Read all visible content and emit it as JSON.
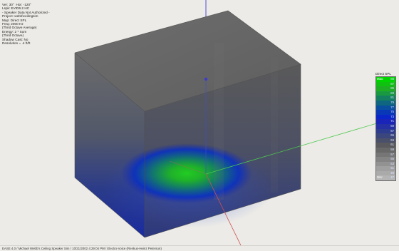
{
  "info": {
    "lines": [
      "Ver: 30°  Hor: -120°",
      "Lspk: EVID6.2 HC",
      "- Speaker Data Not Authorized -",
      "Project: webb\\ceilingsim",
      "Map: Direct SPL",
      "Freq: 2000 Hz",
      "(Third Octave Average)",
      "Energy: 2 * Sum",
      "(Third Octave)",
      "Shadow Cast: No",
      "Resolution = .4 ft/ft"
    ]
  },
  "legend": {
    "title": "Direct SPL",
    "max_label": "Max:",
    "min_label": "Min:",
    "entries": [
      {
        "value": "88",
        "color": "#00d400"
      },
      {
        "value": "87",
        "color": "#10c210"
      },
      {
        "value": "85",
        "color": "#1fae23"
      },
      {
        "value": "83",
        "color": "#1a9a40"
      },
      {
        "value": "81",
        "color": "#148060"
      },
      {
        "value": "79",
        "color": "#0e6680"
      },
      {
        "value": "77",
        "color": "#0a4ea0"
      },
      {
        "value": "75",
        "color": "#0838b8"
      },
      {
        "value": "73",
        "color": "#0a26c8"
      },
      {
        "value": "71",
        "color": "#1a24b8"
      },
      {
        "value": "69",
        "color": "#2430a4"
      },
      {
        "value": "67",
        "color": "#2e3c90"
      },
      {
        "value": "65",
        "color": "#3a467c"
      },
      {
        "value": "63",
        "color": "#4a4f6a"
      },
      {
        "value": "61",
        "color": "#5a5a5e"
      },
      {
        "value": "59",
        "color": "#686868"
      },
      {
        "value": "57",
        "color": "#767676"
      },
      {
        "value": "55",
        "color": "#848484"
      },
      {
        "value": "53",
        "color": "#929292"
      },
      {
        "value": "51",
        "color": "#a0a0a0"
      },
      {
        "value": "49",
        "color": "#aaaaaa"
      },
      {
        "value": "47",
        "color": "#b4b4b4"
      }
    ]
  },
  "status": {
    "text": "EASE 4.0  /  Michael Webb's Ceiling Speaker Sim  /  10/21/2002 4:29:04 PM  /  Electro-Voice (Renkus-Heinz Peterson)"
  },
  "colors": {
    "background": "#ecebe7",
    "axis_z": "#4040d0",
    "axis_y": "#4cc84c",
    "axis_x": "#d05050",
    "hotspot": "#22cc22"
  }
}
